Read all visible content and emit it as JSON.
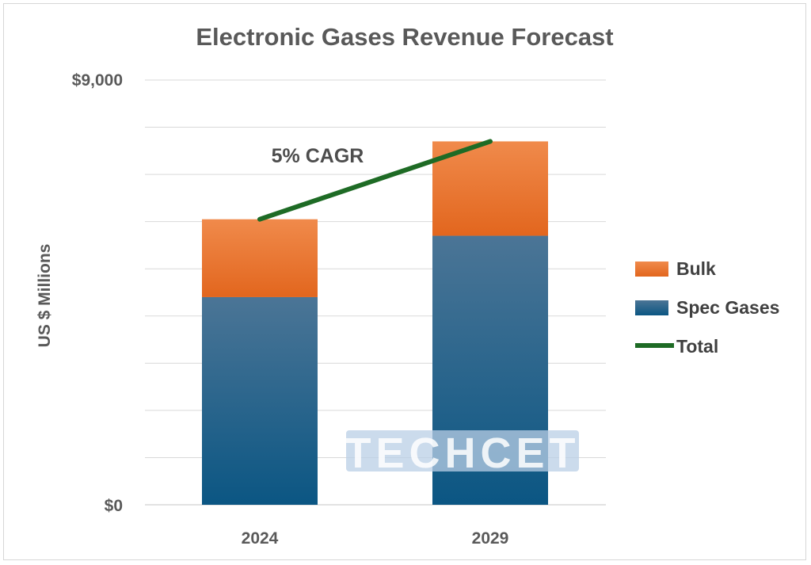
{
  "colors": {
    "bulk_top": "#f08a4b",
    "bulk_bottom": "#e2661e",
    "spec_top": "#4b7596",
    "spec_bottom": "#0b5683",
    "total": "#1e6b25",
    "grid": "#d9d9d9",
    "watermark_band": "#b9cfe6"
  },
  "watermark": "TECHCET",
  "chart_data": {
    "type": "bar",
    "stacked": true,
    "title": "Electronic Gases Revenue Forecast",
    "ylabel": "US $ Millions",
    "xlabel": "",
    "categories": [
      "2024",
      "2029"
    ],
    "ylim": [
      0,
      9000
    ],
    "yticks": [
      0,
      9000
    ],
    "ytick_labels": [
      "$0",
      "$9,000"
    ],
    "grid_step": 1000,
    "grid": true,
    "series": [
      {
        "name": "Spec Gases",
        "values": [
          4400,
          5700
        ],
        "color_key": "spec"
      },
      {
        "name": "Bulk",
        "values": [
          1650,
          2000
        ],
        "color_key": "bulk"
      }
    ],
    "line": {
      "name": "Total",
      "values": [
        6050,
        7700
      ]
    },
    "annotation": "5% CAGR",
    "legend_position": "right",
    "legend": [
      "Bulk",
      "Spec Gases",
      "Total"
    ]
  }
}
